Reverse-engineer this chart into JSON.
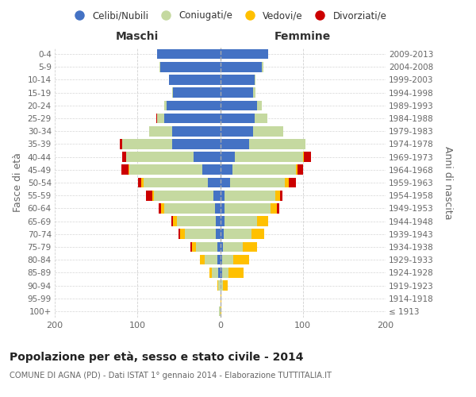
{
  "age_groups": [
    "100+",
    "95-99",
    "90-94",
    "85-89",
    "80-84",
    "75-79",
    "70-74",
    "65-69",
    "60-64",
    "55-59",
    "50-54",
    "45-49",
    "40-44",
    "35-39",
    "30-34",
    "25-29",
    "20-24",
    "15-19",
    "10-14",
    "5-9",
    "0-4"
  ],
  "birth_years": [
    "≤ 1913",
    "1914-1918",
    "1919-1923",
    "1924-1928",
    "1929-1933",
    "1934-1938",
    "1939-1943",
    "1944-1948",
    "1949-1953",
    "1954-1958",
    "1959-1963",
    "1964-1968",
    "1969-1973",
    "1974-1978",
    "1979-1983",
    "1984-1988",
    "1989-1993",
    "1994-1998",
    "1999-2003",
    "2004-2008",
    "2009-2013"
  ],
  "maschi": {
    "celibi": [
      0,
      0,
      0,
      2,
      3,
      3,
      5,
      5,
      6,
      8,
      15,
      22,
      32,
      58,
      58,
      68,
      65,
      57,
      62,
      72,
      76
    ],
    "coniugati": [
      1,
      0,
      2,
      8,
      16,
      26,
      38,
      47,
      62,
      72,
      78,
      88,
      82,
      60,
      28,
      8,
      3,
      1,
      0,
      1,
      0
    ],
    "vedovi": [
      0,
      0,
      1,
      3,
      5,
      5,
      5,
      5,
      3,
      2,
      2,
      1,
      0,
      0,
      0,
      0,
      0,
      0,
      0,
      0,
      0
    ],
    "divorziati": [
      0,
      0,
      0,
      0,
      0,
      2,
      2,
      2,
      3,
      8,
      4,
      8,
      4,
      3,
      0,
      1,
      0,
      0,
      0,
      0,
      0
    ]
  },
  "femmine": {
    "nubili": [
      0,
      0,
      0,
      2,
      2,
      3,
      4,
      5,
      5,
      5,
      12,
      15,
      18,
      35,
      40,
      42,
      45,
      40,
      42,
      50,
      58
    ],
    "coniugate": [
      0,
      0,
      3,
      8,
      14,
      24,
      34,
      40,
      56,
      62,
      66,
      77,
      82,
      68,
      36,
      15,
      5,
      3,
      1,
      2,
      0
    ],
    "vedove": [
      1,
      1,
      6,
      18,
      19,
      18,
      15,
      13,
      8,
      5,
      5,
      2,
      1,
      0,
      0,
      0,
      0,
      0,
      0,
      0,
      0
    ],
    "divorziate": [
      0,
      0,
      0,
      0,
      0,
      0,
      0,
      0,
      2,
      3,
      9,
      6,
      9,
      0,
      0,
      0,
      0,
      0,
      0,
      0,
      0
    ]
  },
  "colors": {
    "celibi": "#4472c4",
    "coniugati": "#c5d9a0",
    "vedovi": "#ffc000",
    "divorziati": "#cc0000"
  },
  "xlim": 200,
  "title": "Popolazione per età, sesso e stato civile - 2014",
  "subtitle": "COMUNE DI AGNA (PD) - Dati ISTAT 1° gennaio 2014 - Elaborazione TUTTITALIA.IT",
  "ylabel_left": "Fasce di età",
  "ylabel_right": "Anni di nascita",
  "legend_labels": [
    "Celibi/Nubili",
    "Coniugati/e",
    "Vedovi/e",
    "Divorziati/e"
  ],
  "bg_color": "#ffffff",
  "grid_color": "#cccccc",
  "maschi_label": "Maschi",
  "femmine_label": "Femmine"
}
